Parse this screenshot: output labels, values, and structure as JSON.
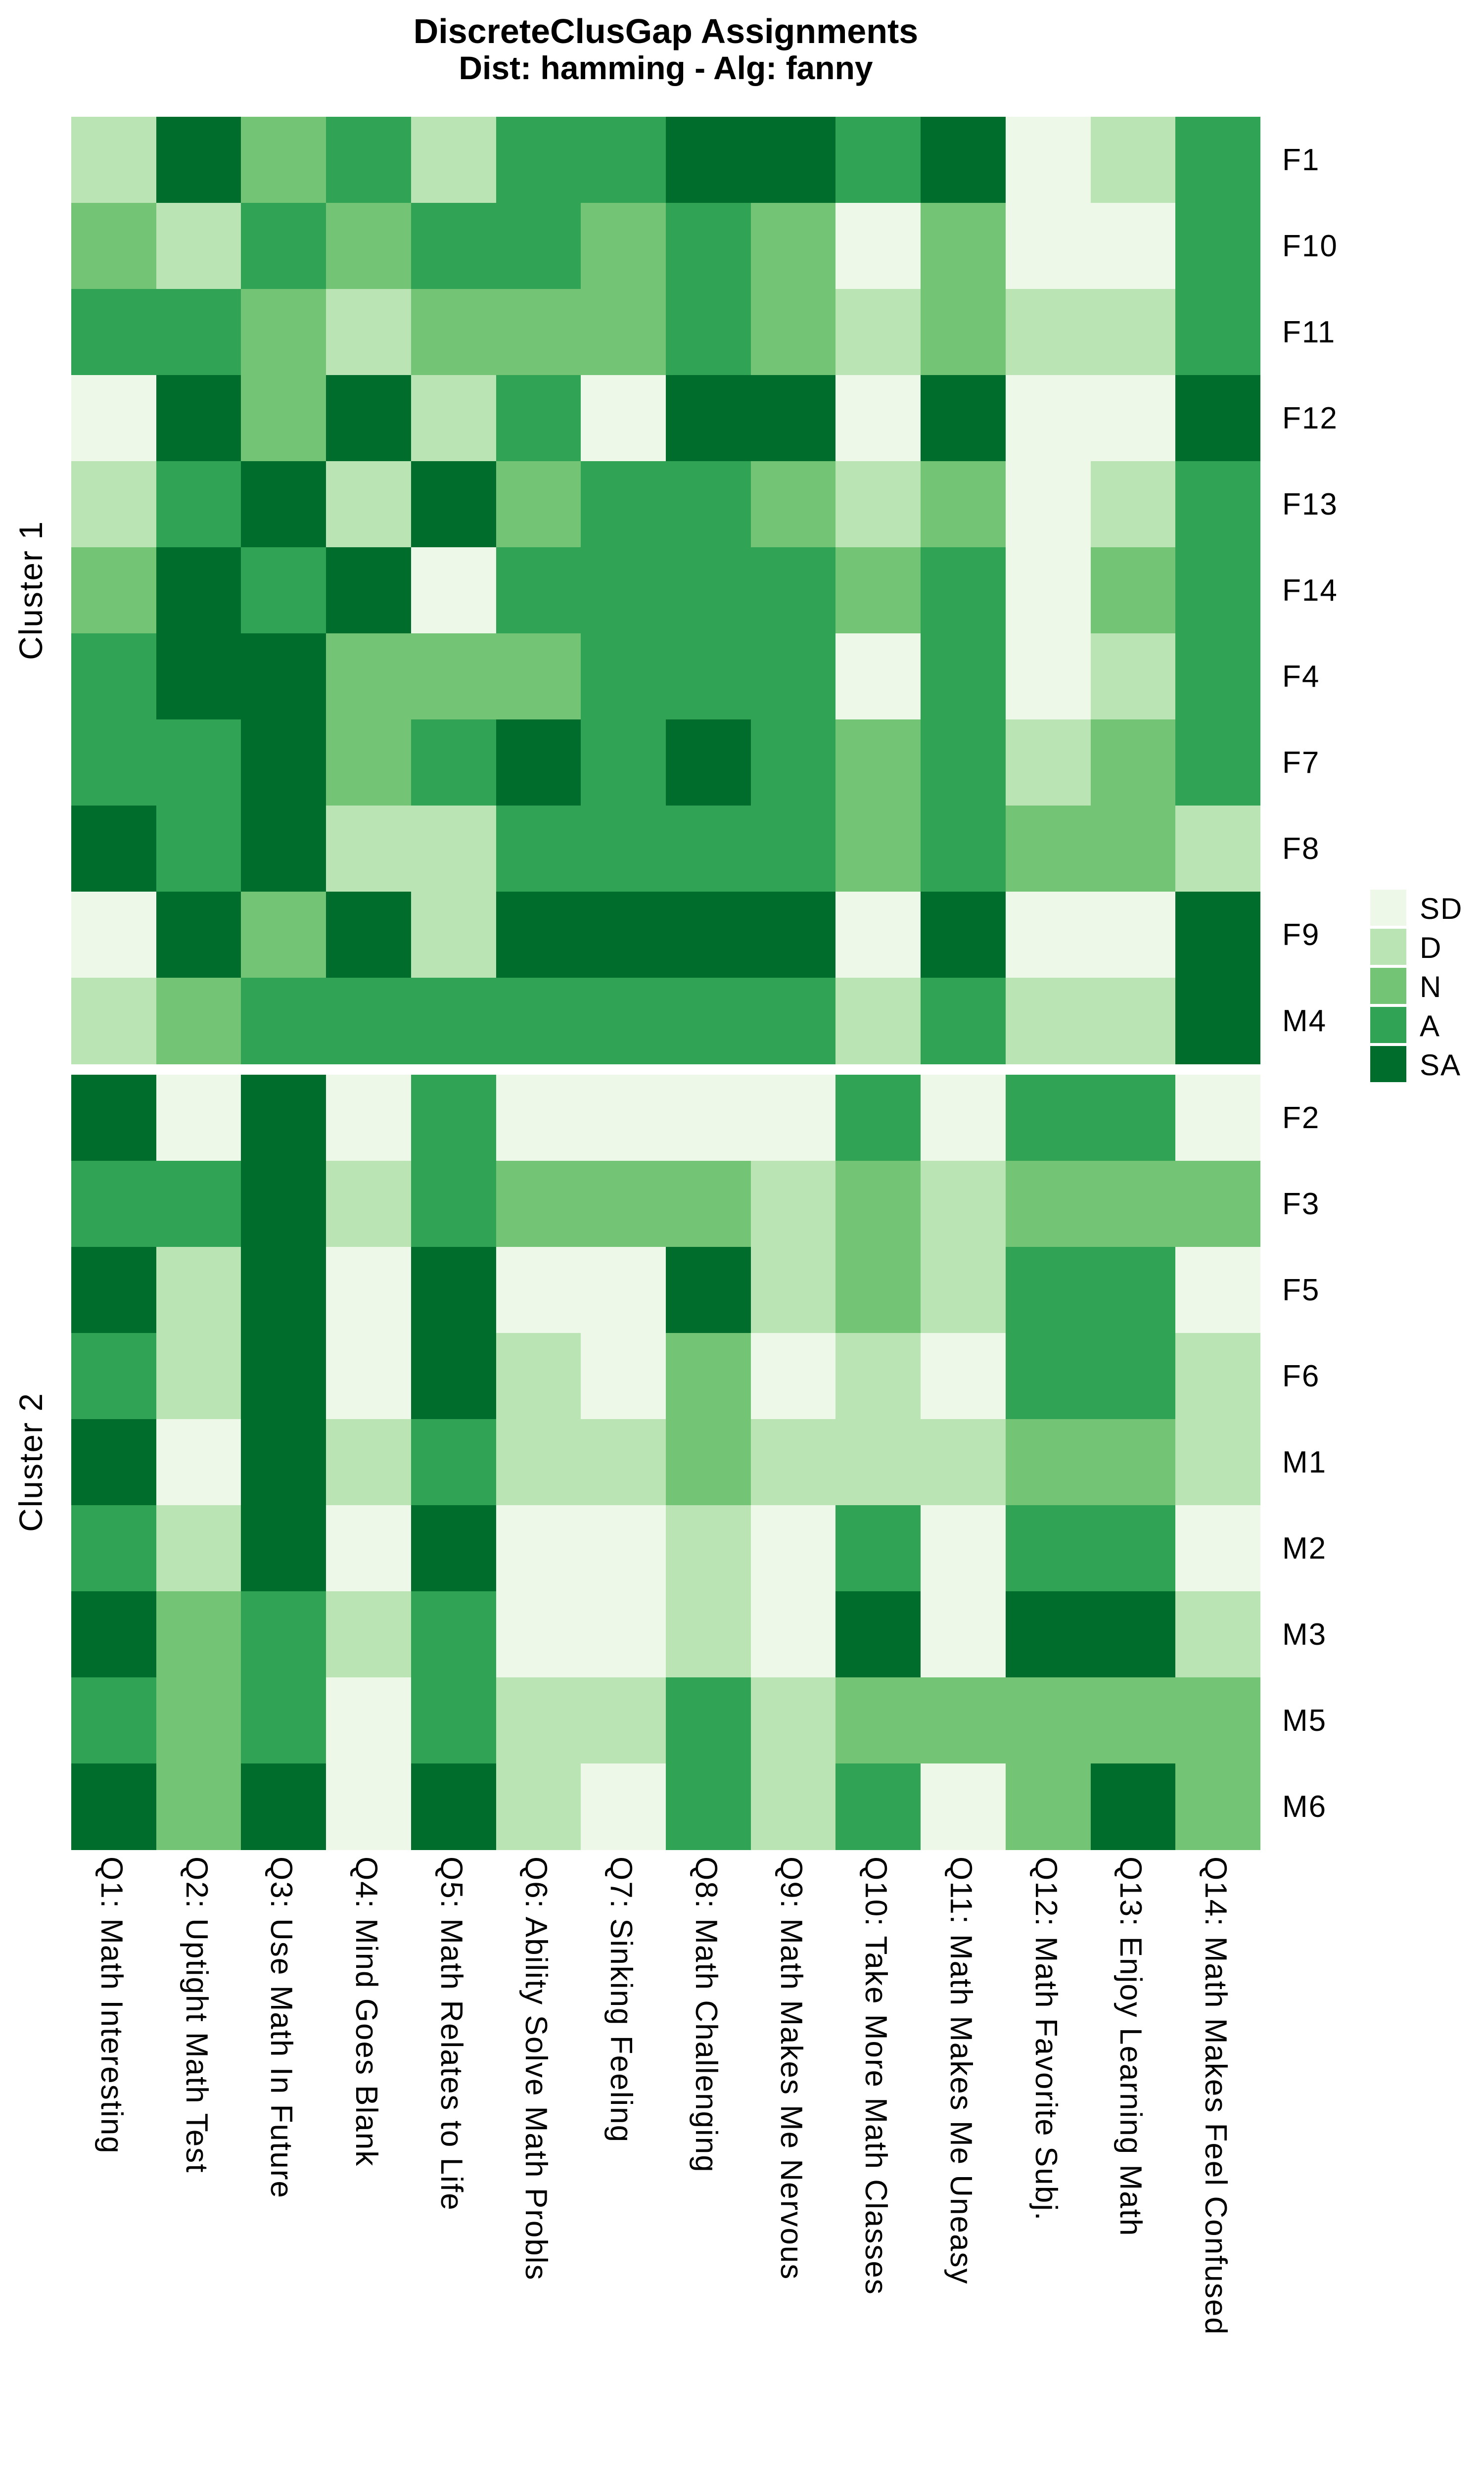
{
  "title": {
    "line1": "DiscreteClusGap Assignments",
    "line2": "Dist: hamming - Alg: fanny"
  },
  "chart_data": {
    "type": "heatmap",
    "title": "DiscreteClusGap Assignments",
    "subtitle": "Dist: hamming - Alg: fanny",
    "legend_position": "right",
    "levels": [
      "SD",
      "D",
      "N",
      "A",
      "SA"
    ],
    "level_colors": {
      "SD": "#edf8e9",
      "D": "#bae4b3",
      "N": "#74c476",
      "A": "#31a354",
      "SA": "#006d2c"
    },
    "x_categories": [
      "Q1: Math Interesting",
      "Q2: Uptight Math Test",
      "Q3: Use Math In Future",
      "Q4: Mind Goes Blank",
      "Q5: Math Relates to Life",
      "Q6: Ability Solve Math Probls",
      "Q7: Sinking Feeling",
      "Q8: Math Challenging",
      "Q9: Math Makes Me Nervous",
      "Q10: Take More Math Classes",
      "Q11: Math Makes Me Uneasy",
      "Q12: Math Favorite Subj.",
      "Q13: Enjoy Learning Math",
      "Q14: Math Makes Feel Confused"
    ],
    "row_groups": [
      {
        "label": "Cluster 1",
        "rows": [
          {
            "name": "F1",
            "values": [
              "D",
              "SA",
              "N",
              "A",
              "D",
              "A",
              "A",
              "SA",
              "SA",
              "A",
              "SA",
              "SD",
              "D",
              "A"
            ]
          },
          {
            "name": "F10",
            "values": [
              "N",
              "D",
              "A",
              "N",
              "A",
              "A",
              "N",
              "A",
              "N",
              "SD",
              "N",
              "SD",
              "SD",
              "A"
            ]
          },
          {
            "name": "F11",
            "values": [
              "A",
              "A",
              "N",
              "D",
              "N",
              "N",
              "N",
              "A",
              "N",
              "D",
              "N",
              "D",
              "D",
              "A"
            ]
          },
          {
            "name": "F12",
            "values": [
              "SD",
              "SA",
              "N",
              "SA",
              "D",
              "A",
              "SD",
              "SA",
              "SA",
              "SD",
              "SA",
              "SD",
              "SD",
              "SA"
            ]
          },
          {
            "name": "F13",
            "values": [
              "D",
              "A",
              "SA",
              "D",
              "SA",
              "N",
              "A",
              "A",
              "N",
              "D",
              "N",
              "SD",
              "D",
              "A"
            ]
          },
          {
            "name": "F14",
            "values": [
              "N",
              "SA",
              "A",
              "SA",
              "SD",
              "A",
              "A",
              "A",
              "A",
              "N",
              "A",
              "SD",
              "N",
              "A"
            ]
          },
          {
            "name": "F4",
            "values": [
              "A",
              "SA",
              "SA",
              "N",
              "N",
              "N",
              "A",
              "A",
              "A",
              "SD",
              "A",
              "SD",
              "D",
              "A"
            ]
          },
          {
            "name": "F7",
            "values": [
              "A",
              "A",
              "SA",
              "N",
              "A",
              "SA",
              "A",
              "SA",
              "A",
              "N",
              "A",
              "D",
              "N",
              "A"
            ]
          },
          {
            "name": "F8",
            "values": [
              "SA",
              "A",
              "SA",
              "D",
              "D",
              "A",
              "A",
              "A",
              "A",
              "N",
              "A",
              "N",
              "N",
              "D"
            ]
          },
          {
            "name": "F9",
            "values": [
              "SD",
              "SA",
              "N",
              "SA",
              "D",
              "SA",
              "SA",
              "SA",
              "SA",
              "SD",
              "SA",
              "SD",
              "SD",
              "SA"
            ]
          },
          {
            "name": "M4",
            "values": [
              "D",
              "N",
              "A",
              "A",
              "A",
              "A",
              "A",
              "A",
              "A",
              "D",
              "A",
              "D",
              "D",
              "SA"
            ]
          }
        ]
      },
      {
        "label": "Cluster 2",
        "rows": [
          {
            "name": "F2",
            "values": [
              "SA",
              "SD",
              "SA",
              "SD",
              "A",
              "SD",
              "SD",
              "SD",
              "SD",
              "A",
              "SD",
              "A",
              "A",
              "SD"
            ]
          },
          {
            "name": "F3",
            "values": [
              "A",
              "A",
              "SA",
              "D",
              "A",
              "N",
              "N",
              "N",
              "D",
              "N",
              "D",
              "N",
              "N",
              "N"
            ]
          },
          {
            "name": "F5",
            "values": [
              "SA",
              "D",
              "SA",
              "SD",
              "SA",
              "SD",
              "SD",
              "SA",
              "D",
              "N",
              "D",
              "A",
              "A",
              "SD"
            ]
          },
          {
            "name": "F6",
            "values": [
              "A",
              "D",
              "SA",
              "SD",
              "SA",
              "D",
              "SD",
              "N",
              "SD",
              "D",
              "SD",
              "A",
              "A",
              "D"
            ]
          },
          {
            "name": "M1",
            "values": [
              "SA",
              "SD",
              "SA",
              "D",
              "A",
              "D",
              "D",
              "N",
              "D",
              "D",
              "D",
              "N",
              "N",
              "D"
            ]
          },
          {
            "name": "M2",
            "values": [
              "A",
              "D",
              "SA",
              "SD",
              "SA",
              "SD",
              "SD",
              "D",
              "SD",
              "A",
              "SD",
              "A",
              "A",
              "SD"
            ]
          },
          {
            "name": "M3",
            "values": [
              "SA",
              "N",
              "A",
              "D",
              "A",
              "SD",
              "SD",
              "D",
              "SD",
              "SA",
              "SD",
              "SA",
              "SA",
              "D"
            ]
          },
          {
            "name": "M5",
            "values": [
              "A",
              "N",
              "A",
              "SD",
              "A",
              "D",
              "D",
              "A",
              "D",
              "N",
              "N",
              "N",
              "N",
              "N"
            ]
          },
          {
            "name": "M6",
            "values": [
              "SA",
              "N",
              "SA",
              "SD",
              "SA",
              "D",
              "SD",
              "A",
              "D",
              "A",
              "SD",
              "N",
              "SA",
              "N"
            ]
          }
        ]
      }
    ]
  }
}
